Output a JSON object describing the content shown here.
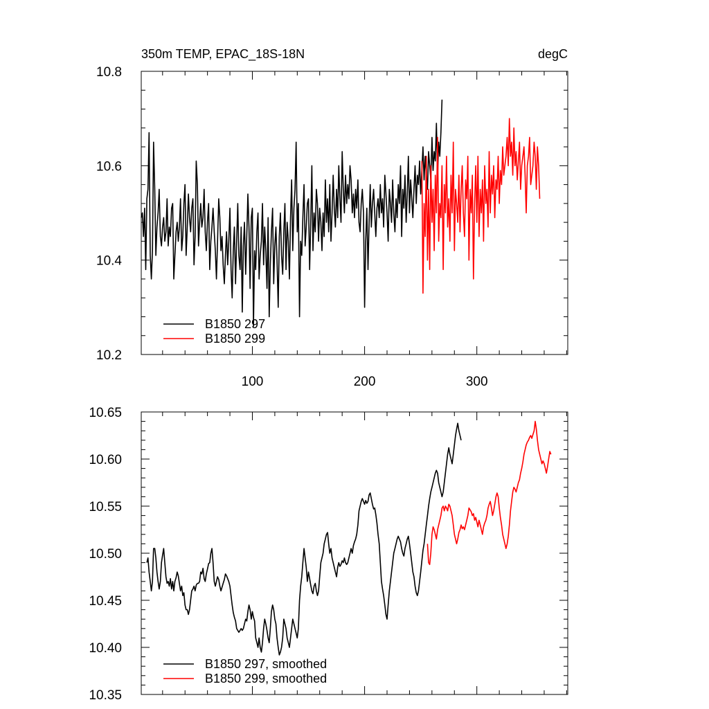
{
  "figure": {
    "title_left": "350m TEMP, EPAC_18S-18N",
    "title_right": "degC"
  },
  "chart_data": [
    {
      "type": "line",
      "title": "350m TEMP, EPAC_18S-18N",
      "units": "degC",
      "xlim": [
        1,
        381
      ],
      "ylim": [
        10.2,
        10.8
      ],
      "x_ticks": [
        100,
        200,
        300
      ],
      "x_tick_labels": [
        "100",
        "200",
        "300"
      ],
      "y_ticks": [
        10.2,
        10.4,
        10.6,
        10.8
      ],
      "y_tick_labels": [
        "10.2",
        "10.4",
        "10.6",
        "10.8"
      ],
      "grid": false,
      "legend_position": "bottom-left",
      "series": [
        {
          "name": "B1850 297",
          "color": "#000000",
          "x_start": 1,
          "values": [
            10.49,
            10.5,
            10.45,
            10.51,
            10.38,
            10.53,
            10.55,
            10.67,
            10.41,
            10.36,
            10.42,
            10.65,
            10.55,
            10.41,
            10.47,
            10.5,
            10.55,
            10.45,
            10.43,
            10.47,
            10.49,
            10.44,
            10.46,
            10.53,
            10.43,
            10.47,
            10.45,
            10.51,
            10.52,
            10.36,
            10.41,
            10.46,
            10.48,
            10.44,
            10.47,
            10.53,
            10.42,
            10.45,
            10.52,
            10.56,
            10.41,
            10.47,
            10.54,
            10.49,
            10.46,
            10.51,
            10.53,
            10.39,
            10.45,
            10.61,
            10.56,
            10.43,
            10.48,
            10.52,
            10.47,
            10.49,
            10.55,
            10.46,
            10.42,
            10.48,
            10.52,
            10.38,
            10.44,
            10.47,
            10.51,
            10.46,
            10.42,
            10.36,
            10.44,
            10.53,
            10.49,
            10.42,
            10.45,
            10.39,
            10.35,
            10.41,
            10.46,
            10.39,
            10.44,
            10.51,
            10.38,
            10.32,
            10.42,
            10.47,
            10.35,
            10.44,
            10.52,
            10.41,
            10.38,
            10.47,
            10.29,
            10.43,
            10.48,
            10.37,
            10.45,
            10.54,
            10.47,
            10.34,
            10.49,
            10.51,
            10.26,
            10.42,
            10.38,
            10.46,
            10.5,
            10.36,
            10.41,
            10.44,
            10.52,
            10.39,
            10.47,
            10.42,
            10.34,
            10.49,
            10.28,
            10.39,
            10.46,
            10.51,
            10.35,
            10.43,
            10.47,
            10.4,
            10.3,
            10.45,
            10.5,
            10.41,
            10.37,
            10.46,
            10.52,
            10.38,
            10.48,
            10.44,
            10.36,
            10.49,
            10.57,
            10.42,
            10.51,
            10.55,
            10.65,
            10.46,
            10.52,
            10.28,
            10.44,
            10.41,
            10.49,
            10.56,
            10.43,
            10.47,
            10.52,
            10.53,
            10.38,
            10.48,
            10.6,
            10.42,
            10.5,
            10.46,
            10.55,
            10.52,
            10.44,
            10.51,
            10.48,
            10.42,
            10.5,
            10.45,
            10.57,
            10.48,
            10.53,
            10.46,
            10.56,
            10.44,
            10.5,
            10.58,
            10.51,
            10.47,
            10.55,
            10.49,
            10.6,
            10.53,
            10.48,
            10.63,
            10.55,
            10.5,
            10.58,
            10.52,
            10.56,
            10.53,
            10.6,
            10.57,
            10.5,
            10.54,
            10.49,
            10.55,
            10.51,
            10.57,
            10.48,
            10.46,
            10.52,
            10.55,
            10.5,
            10.3,
            10.44,
            10.51,
            10.38,
            10.48,
            10.56,
            10.47,
            10.52,
            10.55,
            10.5,
            10.45,
            10.51,
            10.53,
            10.49,
            10.56,
            10.5,
            10.53,
            10.47,
            10.58,
            10.54,
            10.5,
            10.44,
            10.55,
            10.52,
            10.48,
            10.57,
            10.5,
            10.46,
            10.53,
            10.49,
            10.56,
            10.52,
            10.6,
            10.45,
            10.55,
            10.51,
            10.58,
            10.48,
            10.54,
            10.62,
            10.5,
            10.57,
            10.53,
            10.49,
            10.55,
            10.6,
            10.52,
            10.58,
            10.56,
            10.61,
            10.54,
            10.59,
            10.64,
            10.57,
            10.62,
            10.58,
            10.55,
            10.63,
            10.6,
            10.57,
            10.66,
            10.59,
            10.63,
            10.61,
            10.69,
            10.58,
            10.65,
            10.62,
            10.67,
            10.74
          ]
        },
        {
          "name": "B1850 299",
          "color": "#ff0000",
          "x_start": 251,
          "values": [
            10.61,
            10.33,
            10.52,
            10.45,
            10.62,
            10.4,
            10.55,
            10.38,
            10.6,
            10.48,
            10.55,
            10.42,
            10.58,
            10.5,
            10.66,
            10.44,
            10.52,
            10.49,
            10.6,
            10.38,
            10.56,
            10.5,
            10.62,
            10.47,
            10.53,
            10.44,
            10.58,
            10.5,
            10.65,
            10.42,
            10.55,
            10.52,
            10.48,
            10.58,
            10.46,
            10.55,
            10.6,
            10.5,
            10.45,
            10.57,
            10.53,
            10.62,
            10.4,
            10.55,
            10.5,
            10.58,
            10.36,
            10.52,
            10.6,
            10.48,
            10.62,
            10.45,
            10.55,
            10.5,
            10.57,
            10.44,
            10.6,
            10.52,
            10.55,
            10.47,
            10.63,
            10.5,
            10.58,
            10.54,
            10.6,
            10.49,
            10.57,
            10.55,
            10.62,
            10.52,
            10.59,
            10.56,
            10.64,
            10.58,
            10.6,
            10.62,
            10.66,
            10.6,
            10.7,
            10.62,
            10.65,
            10.58,
            10.68,
            10.6,
            10.63,
            10.57,
            10.61,
            10.65,
            10.55,
            10.6,
            10.62,
            10.64,
            10.58,
            10.5,
            10.6,
            10.62,
            10.66,
            10.56,
            10.58,
            10.6,
            10.65,
            10.62,
            10.55,
            10.64,
            10.6,
            10.53
          ]
        }
      ]
    },
    {
      "type": "line",
      "xlim": [
        1,
        381
      ],
      "ylim": [
        10.35,
        10.65
      ],
      "x_ticks": [
        100,
        200,
        300
      ],
      "y_ticks": [
        10.35,
        10.4,
        10.45,
        10.5,
        10.55,
        10.6,
        10.65
      ],
      "y_tick_labels": [
        "10.35",
        "10.40",
        "10.45",
        "10.50",
        "10.55",
        "10.60",
        "10.65"
      ],
      "grid": false,
      "legend_position": "bottom-left",
      "series": [
        {
          "name": "B1850 297, smoothed",
          "color": "#000000",
          "x_start": 6,
          "values": [
            10.49,
            10.495,
            10.48,
            10.47,
            10.46,
            10.47,
            10.505,
            10.505,
            10.495,
            10.48,
            10.47,
            10.462,
            10.47,
            10.49,
            10.498,
            10.505,
            10.49,
            10.475,
            10.468,
            10.47,
            10.465,
            10.473,
            10.462,
            10.47,
            10.46,
            10.47,
            10.474,
            10.48,
            10.476,
            10.468,
            10.46,
            10.465,
            10.455,
            10.458,
            10.445,
            10.44,
            10.44,
            10.435,
            10.44,
            10.45,
            10.46,
            10.462,
            10.465,
            10.46,
            10.466,
            10.468,
            10.468,
            10.47,
            10.48,
            10.478,
            10.484,
            10.473,
            10.47,
            10.478,
            10.483,
            10.489,
            10.49,
            10.5,
            10.505,
            10.49,
            10.47,
            10.465,
            10.47,
            10.475,
            10.472,
            10.465,
            10.46,
            10.464,
            10.468,
            10.472,
            10.478,
            10.476,
            10.473,
            10.47,
            10.465,
            10.455,
            10.445,
            10.437,
            10.432,
            10.428,
            10.42,
            10.418,
            10.416,
            10.418,
            10.42,
            10.418,
            10.42,
            10.425,
            10.43,
            10.428,
            10.438,
            10.445,
            10.44,
            10.43,
            10.438,
            10.432,
            10.428,
            10.41,
            10.405,
            10.4,
            10.41,
            10.4,
            10.395,
            10.405,
            10.42,
            10.43,
            10.425,
            10.418,
            10.41,
            10.405,
            10.42,
            10.438,
            10.445,
            10.44,
            10.43,
            10.425,
            10.41,
            10.4,
            10.392,
            10.395,
            10.4,
            10.41,
            10.43,
            10.425,
            10.42,
            10.41,
            10.405,
            10.4,
            10.41,
            10.42,
            10.43,
            10.425,
            10.42,
            10.415,
            10.41,
            10.42,
            10.45,
            10.465,
            10.475,
            10.49,
            10.505,
            10.495,
            10.485,
            10.47,
            10.48,
            10.473,
            10.466,
            10.46,
            10.457,
            10.465,
            10.468,
            10.46,
            10.455,
            10.46,
            10.475,
            10.49,
            10.495,
            10.5,
            10.51,
            10.515,
            10.52,
            10.522,
            10.51,
            10.5,
            10.505,
            10.495,
            10.49,
            10.485,
            10.48,
            10.475,
            10.485,
            10.49,
            10.486,
            10.488,
            10.492,
            10.49,
            10.495,
            10.49,
            10.488,
            10.49,
            10.495,
            10.5,
            10.505,
            10.5,
            10.508,
            10.512,
            10.515,
            10.52,
            10.53,
            10.545,
            10.55,
            10.555,
            10.558,
            10.555,
            10.552,
            10.556,
            10.553,
            10.555,
            10.562,
            10.564,
            10.558,
            10.552,
            10.547,
            10.548,
            10.541,
            10.532,
            10.52,
            10.51,
            10.49,
            10.47,
            10.462,
            10.455,
            10.445,
            10.435,
            10.43,
            10.445,
            10.46,
            10.47,
            10.48,
            10.49,
            10.5,
            10.505,
            10.51,
            10.515,
            10.518,
            10.515,
            10.512,
            10.505,
            10.5,
            10.497,
            10.505,
            10.51,
            10.515,
            10.518,
            10.51,
            10.5,
            10.49,
            10.48,
            10.475,
            10.465,
            10.458,
            10.455,
            10.46,
            10.47,
            10.48,
            10.492,
            10.503,
            10.51,
            10.52,
            10.53,
            10.54,
            10.55,
            10.558,
            10.565,
            10.57,
            10.575,
            10.58,
            10.585,
            10.588,
            10.585,
            10.575,
            10.57,
            10.565,
            10.56,
            10.565,
            10.575,
            10.585,
            10.595,
            10.605,
            10.612,
            10.605,
            10.6,
            10.595,
            10.605,
            10.615,
            10.625,
            10.632,
            10.638,
            10.63,
            10.625,
            10.62
          ]
        },
        {
          "name": "B1850 299, smoothed",
          "color": "#ff0000",
          "x_start": 256,
          "values": [
            10.51,
            10.49,
            10.488,
            10.5,
            10.52,
            10.528,
            10.525,
            10.52,
            10.515,
            10.525,
            10.53,
            10.535,
            10.54,
            10.548,
            10.55,
            10.545,
            10.55,
            10.548,
            10.545,
            10.552,
            10.55,
            10.545,
            10.54,
            10.53,
            10.52,
            10.515,
            10.51,
            10.515,
            10.522,
            10.525,
            10.53,
            10.526,
            10.528,
            10.525,
            10.53,
            10.535,
            10.54,
            10.548,
            10.546,
            10.544,
            10.54,
            10.542,
            10.535,
            10.538,
            10.533,
            10.528,
            10.535,
            10.53,
            10.525,
            10.52,
            10.528,
            10.532,
            10.535,
            10.54,
            10.548,
            10.552,
            10.555,
            10.548,
            10.54,
            10.545,
            10.552,
            10.56,
            10.564,
            10.56,
            10.548,
            10.538,
            10.53,
            10.52,
            10.515,
            10.51,
            10.505,
            10.51,
            10.518,
            10.53,
            10.545,
            10.555,
            10.565,
            10.57,
            10.568,
            10.565,
            10.57,
            10.575,
            10.578,
            10.585,
            10.59,
            10.597,
            10.605,
            10.61,
            10.615,
            10.618,
            10.62,
            10.623,
            10.625,
            10.622,
            10.626,
            10.63,
            10.64,
            10.632,
            10.62,
            10.61,
            10.605,
            10.6,
            10.595,
            10.598,
            10.595,
            10.59,
            10.585,
            10.592,
            10.6,
            10.608,
            10.605
          ]
        }
      ]
    }
  ]
}
